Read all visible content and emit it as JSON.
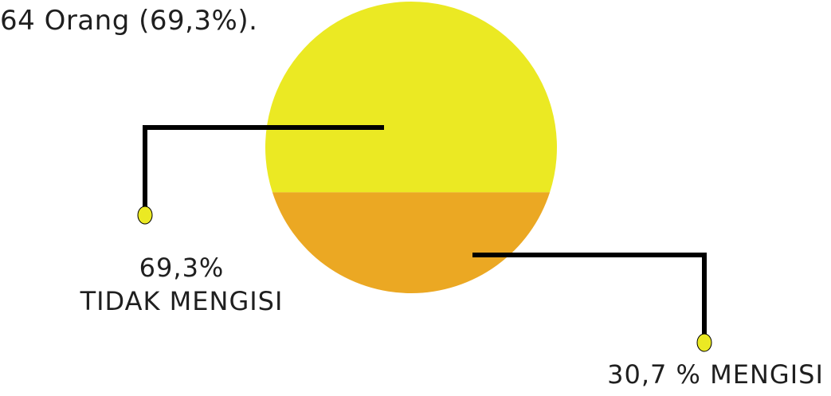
{
  "caption": "64 Orang (69,3%).",
  "chart_data": {
    "type": "pie",
    "title": "",
    "categories": [
      "TIDAK MENGISI",
      "MENGISI"
    ],
    "values": [
      69.3,
      30.7
    ],
    "colors": [
      "#ebe923",
      "#eba823"
    ],
    "labels": [
      {
        "value": "69,3%",
        "text": "TIDAK MENGISI"
      },
      {
        "text": "30,7 % MENGISI"
      }
    ],
    "marker_color": "#ebe923",
    "leader_color": "#000000"
  }
}
